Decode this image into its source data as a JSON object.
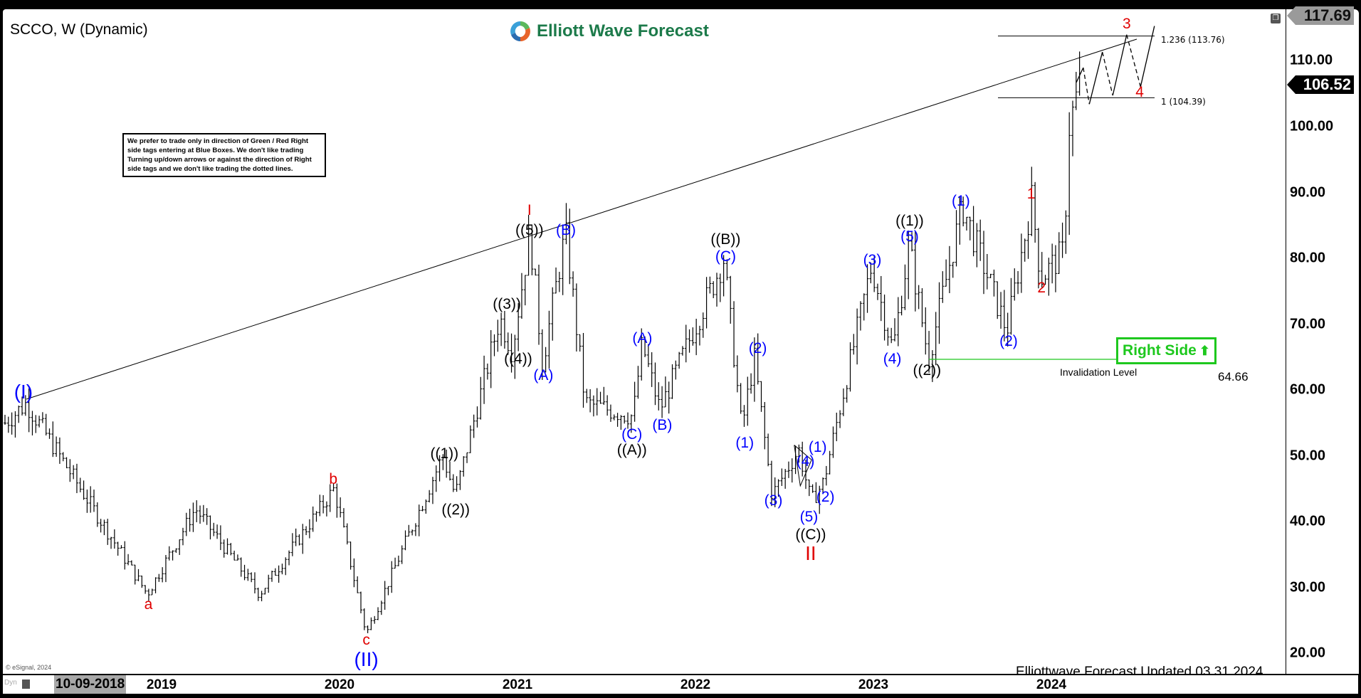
{
  "header": {
    "symbol_title": "SCCO, W (Dynamic)",
    "brand": "Elliott Wave Forecast"
  },
  "note_box": "We prefer to trade only in direction of Green / Red Right side tags entering at Blue Boxes. We don't like trading Turning up/down arrows or against the direction of Right side tags and we don't like trading the dotted lines.",
  "right_side_tag": {
    "label": "Right Side",
    "arrow": "up-arrow",
    "color": "#1ec81e"
  },
  "invalidation": {
    "label": "Invalidation Level",
    "value": "64.66",
    "color": "#1ec81e"
  },
  "fib_levels": [
    {
      "label": "1.236 (113.76)",
      "price": 113.76
    },
    {
      "label": "1 (104.39)",
      "price": 104.39
    }
  ],
  "price_tags": {
    "high": "117.69",
    "last": "106.52"
  },
  "footer": {
    "updated": "Elliottwave Forecast Updated 03.31.2024",
    "copyright": "© eSignal, 2024",
    "cursor_date": "10-09-2018",
    "dyn": "Dyn"
  },
  "chart_data": {
    "type": "ohlc-bar",
    "interval": "weekly",
    "y_ticks": [
      "110.00",
      "100.00",
      "90.00",
      "80.00",
      "70.00",
      "60.00",
      "50.00",
      "40.00",
      "30.00",
      "20.00"
    ],
    "ylim": [
      18,
      118
    ],
    "x_ticks": [
      "2019",
      "2020",
      "2021",
      "2022",
      "2023",
      "2024"
    ],
    "pivots": [
      {
        "t": 2018.2,
        "price": 55
      },
      {
        "t": 2018.32,
        "price": 58
      },
      {
        "t": 2019.0,
        "price": 29
      },
      {
        "t": 2019.27,
        "price": 42
      },
      {
        "t": 2019.63,
        "price": 29
      },
      {
        "t": 2020.05,
        "price": 45
      },
      {
        "t": 2020.23,
        "price": 23
      },
      {
        "t": 2020.66,
        "price": 50
      },
      {
        "t": 2020.73,
        "price": 44
      },
      {
        "t": 2020.98,
        "price": 71
      },
      {
        "t": 2021.05,
        "price": 66
      },
      {
        "t": 2021.15,
        "price": 84
      },
      {
        "t": 2021.22,
        "price": 64
      },
      {
        "t": 2021.35,
        "price": 84
      },
      {
        "t": 2021.46,
        "price": 58
      },
      {
        "t": 2021.73,
        "price": 56
      },
      {
        "t": 2021.78,
        "price": 67
      },
      {
        "t": 2021.88,
        "price": 57
      },
      {
        "t": 2022.24,
        "price": 80
      },
      {
        "t": 2022.34,
        "price": 54
      },
      {
        "t": 2022.41,
        "price": 65
      },
      {
        "t": 2022.51,
        "price": 44
      },
      {
        "t": 2022.66,
        "price": 51
      },
      {
        "t": 2022.73,
        "price": 43
      },
      {
        "t": 2022.8,
        "price": 46
      },
      {
        "t": 2023.07,
        "price": 79
      },
      {
        "t": 2023.19,
        "price": 66
      },
      {
        "t": 2023.28,
        "price": 82
      },
      {
        "t": 2023.39,
        "price": 64.66
      },
      {
        "t": 2023.58,
        "price": 88
      },
      {
        "t": 2023.83,
        "price": 69
      },
      {
        "t": 2023.97,
        "price": 89
      },
      {
        "t": 2024.02,
        "price": 77
      },
      {
        "t": 2024.15,
        "price": 81
      },
      {
        "t": 2024.18,
        "price": 100
      },
      {
        "t": 2024.24,
        "price": 106.52
      }
    ],
    "wave_labels": [
      {
        "text": "(I)",
        "color": "#0000ff"
      },
      {
        "text": "a",
        "color": "#e00000"
      },
      {
        "text": "b",
        "color": "#e00000"
      },
      {
        "text": "c",
        "color": "#e00000"
      },
      {
        "text": "(II)",
        "color": "#0000ff"
      },
      {
        "text": "((1))",
        "color": "#000000"
      },
      {
        "text": "((2))",
        "color": "#000000"
      },
      {
        "text": "((3))",
        "color": "#000000"
      },
      {
        "text": "((4))",
        "color": "#000000"
      },
      {
        "text": "((5))",
        "color": "#000000"
      },
      {
        "text": "I",
        "color": "#e00000"
      },
      {
        "text": "(A)",
        "color": "#0000ff"
      },
      {
        "text": "(B)",
        "color": "#0000ff"
      },
      {
        "text": "(C)",
        "color": "#0000ff"
      },
      {
        "text": "((A))",
        "color": "#000000"
      },
      {
        "text": "(B)",
        "color": "#0000ff"
      },
      {
        "text": "(A)",
        "color": "#0000ff"
      },
      {
        "text": "((B))",
        "color": "#000000"
      },
      {
        "text": "(C)",
        "color": "#0000ff"
      },
      {
        "text": "(2)",
        "color": "#0000ff"
      },
      {
        "text": "(1)",
        "color": "#0000ff"
      },
      {
        "text": "(3)",
        "color": "#0000ff"
      },
      {
        "text": "(4)",
        "color": "#0000ff"
      },
      {
        "text": "(1)",
        "color": "#0000ff"
      },
      {
        "text": "(2)",
        "color": "#0000ff"
      },
      {
        "text": "(5)",
        "color": "#0000ff"
      },
      {
        "text": "((C))",
        "color": "#000000"
      },
      {
        "text": "II",
        "color": "#e00000"
      },
      {
        "text": "(3)",
        "color": "#0000ff"
      },
      {
        "text": "(4)",
        "color": "#0000ff"
      },
      {
        "text": "(5)",
        "color": "#0000ff"
      },
      {
        "text": "((1))",
        "color": "#000000"
      },
      {
        "text": "((2))",
        "color": "#000000"
      },
      {
        "text": "(1)",
        "color": "#0000ff"
      },
      {
        "text": "(2)",
        "color": "#0000ff"
      },
      {
        "text": "1",
        "color": "#e00000"
      },
      {
        "text": "2",
        "color": "#e00000"
      },
      {
        "text": "3",
        "color": "#e00000"
      },
      {
        "text": "4",
        "color": "#e00000"
      }
    ]
  }
}
